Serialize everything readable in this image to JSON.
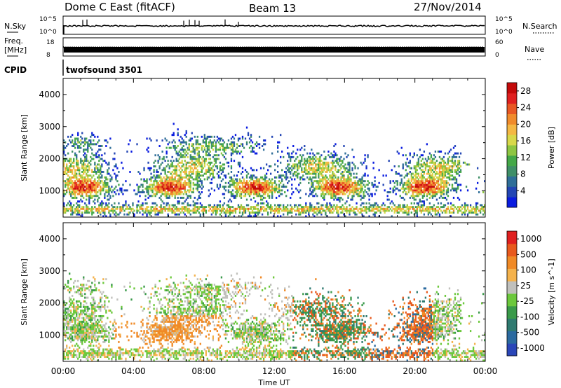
{
  "header": {
    "station": "Dome C East (fitACF)",
    "beam": "Beam 13",
    "date": "27/Nov/2014"
  },
  "strips": {
    "nsky_label": "N.Sky",
    "nsky_ticks": [
      "10^5",
      "10^0"
    ],
    "nsearch_label": "N.Search",
    "nsearch_ticks": [
      "10^5",
      "10^0"
    ],
    "freq_label": "Freq.",
    "freq_unit": "[MHz]",
    "freq_ticks": [
      "18",
      "8"
    ],
    "nave_label": "Nave",
    "nave_ticks": [
      "60",
      "0"
    ],
    "cpid_label": "CPID",
    "cpid_value": "twofsound 3501"
  },
  "chart_data": [
    {
      "type": "heatmap",
      "title": "Power",
      "ylabel": "Slant Range [km]",
      "xlabel": "",
      "y_ticks": [
        1000,
        2000,
        3000,
        4000
      ],
      "ylim": [
        180,
        4500
      ],
      "colorbar_label": "Power [dB]",
      "colorbar_ticks": [
        4,
        8,
        12,
        16,
        20,
        24,
        28
      ],
      "colorbar_range": [
        0,
        30
      ],
      "colors": [
        "#0a1ce0",
        "#2346b4",
        "#2f6e98",
        "#3f8f68",
        "#44a848",
        "#8ec642",
        "#d8d84a",
        "#f4b844",
        "#f08b2c",
        "#e85824",
        "#e02020",
        "#c40a0a"
      ],
      "x_ticks": [
        "00:00",
        "04:00",
        "08:00",
        "12:00",
        "16:00",
        "20:00",
        "00:00"
      ]
    },
    {
      "type": "heatmap",
      "title": "Velocity",
      "ylabel": "Slant Range [km]",
      "xlabel": "Time UT",
      "y_ticks": [
        1000,
        2000,
        3000,
        4000
      ],
      "ylim": [
        180,
        4500
      ],
      "colorbar_label": "Velocity [m s^-1]",
      "colorbar_ticks": [
        "1000",
        "500",
        "100",
        "25",
        "-25",
        "-100",
        "-500",
        "-1000"
      ],
      "colors": [
        "#2a46b8",
        "#2b6aa0",
        "#2f7a70",
        "#3a9a4a",
        "#6cc83c",
        "#c0c0bc",
        "#f4b24c",
        "#f08a26",
        "#e85a1e",
        "#e02020"
      ],
      "x_ticks": [
        "00:00",
        "04:00",
        "08:00",
        "12:00",
        "16:00",
        "20:00",
        "00:00"
      ]
    }
  ]
}
